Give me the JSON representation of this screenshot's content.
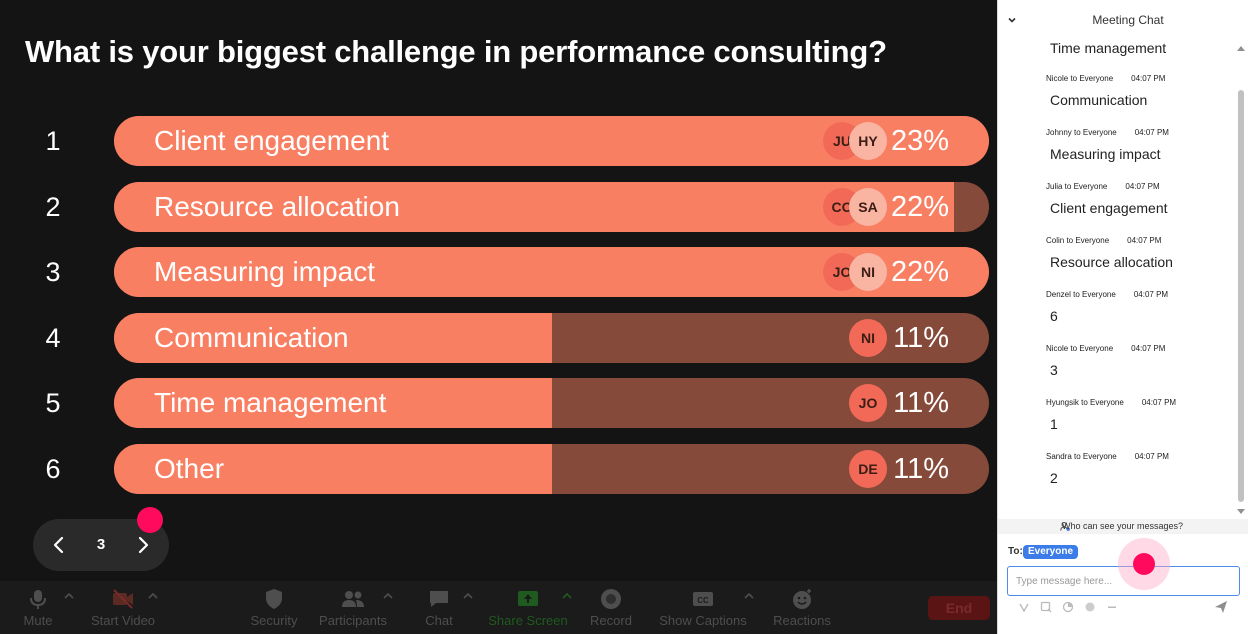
{
  "presentation": {
    "question": "What is your biggest challenge in performance consulting?",
    "options": [
      {
        "rank": "1",
        "label": "Client engagement",
        "percent_text": "23%",
        "fill": 1.0,
        "avatars": [
          "JU",
          "HY"
        ]
      },
      {
        "rank": "2",
        "label": "Resource allocation",
        "percent_text": "22%",
        "fill": 0.96,
        "avatars": [
          "CO",
          "SA"
        ]
      },
      {
        "rank": "3",
        "label": "Measuring impact",
        "percent_text": "22%",
        "fill": 1.0,
        "avatars": [
          "JO",
          "NI"
        ]
      },
      {
        "rank": "4",
        "label": "Communication",
        "percent_text": "11%",
        "fill": 0.5,
        "avatars": [
          "NI"
        ]
      },
      {
        "rank": "5",
        "label": "Time management",
        "percent_text": "11%",
        "fill": 0.5,
        "avatars": [
          "JO"
        ]
      },
      {
        "rank": "6",
        "label": "Other",
        "percent_text": "11%",
        "fill": 0.5,
        "avatars": [
          "DE"
        ]
      }
    ],
    "pager": {
      "current_page": "3",
      "prev_icon": "chevron-left-icon",
      "next_icon": "chevron-right-icon"
    }
  },
  "toolbar": {
    "buttons": [
      {
        "label": "Mute",
        "icon": "microphone-icon"
      },
      {
        "label": "Start Video",
        "icon": "video-off-icon"
      },
      {
        "label": "Security",
        "icon": "shield-icon"
      },
      {
        "label": "Participants",
        "icon": "participants-icon"
      },
      {
        "label": "Chat",
        "icon": "chat-bubble-icon"
      },
      {
        "label": "Share Screen",
        "icon": "share-screen-icon"
      },
      {
        "label": "Record",
        "icon": "record-icon"
      },
      {
        "label": "Show Captions",
        "icon": "captions-icon"
      },
      {
        "label": "Reactions",
        "icon": "emoji-plus-icon"
      }
    ],
    "end_label": "End"
  },
  "chat": {
    "title": "Meeting Chat",
    "first_message": "Time management",
    "messages": [
      {
        "sender": "Nicole to Everyone",
        "time": "04:07 PM",
        "text": "Communication"
      },
      {
        "sender": "Johnny to Everyone",
        "time": "04:07 PM",
        "text": "Measuring impact"
      },
      {
        "sender": "Julia to Everyone",
        "time": "04:07 PM",
        "text": "Client engagement"
      },
      {
        "sender": "Colin to Everyone",
        "time": "04:07 PM",
        "text": "Resource allocation"
      },
      {
        "sender": "Denzel to Everyone",
        "time": "04:07 PM",
        "text": "6"
      },
      {
        "sender": "Nicole to Everyone",
        "time": "04:07 PM",
        "text": "3"
      },
      {
        "sender": "Hyungsik to Everyone",
        "time": "04:07 PM",
        "text": "1"
      },
      {
        "sender": "Sandra to Everyone",
        "time": "04:07 PM",
        "text": "2"
      }
    ],
    "who_can_see": "Who can see your messages?",
    "to_label": "To:",
    "to_target": "Everyone",
    "input_placeholder": "Type message here...",
    "input_tools": [
      "format-icon",
      "screenshot-icon",
      "file-icon",
      "emoji-icon",
      "more-icon"
    ],
    "send_icon": "send-icon"
  },
  "colors": {
    "bar_fill": "#f97f63",
    "bar_track": "#864a3a",
    "avatar_primary": "#f26a57",
    "avatar_secondary": "#fab4a2",
    "stage_bg": "#141414",
    "accent_blue": "#3b7ce8",
    "cursor_highlight": "#ff0a5c",
    "end_button": "#5a1414"
  }
}
